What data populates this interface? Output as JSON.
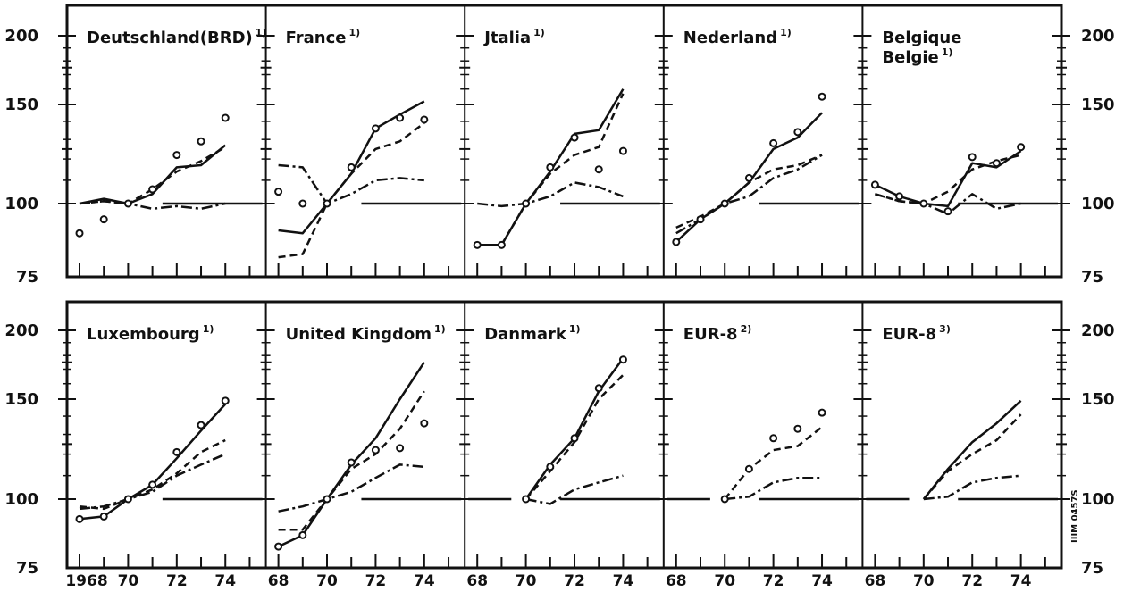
{
  "figure": {
    "code": "IIIM 0457S"
  },
  "chart_data": [
    {
      "type": "line",
      "title": "Deutschland(BRD)",
      "note": "1)",
      "xlim": [
        1968,
        1975
      ],
      "ylim": [
        75,
        200
      ],
      "x": [
        1968,
        1969,
        1970,
        1971,
        1972,
        1973,
        1974
      ],
      "series": [
        {
          "style": "solid",
          "values": [
            100,
            102,
            100,
            104,
            116,
            117,
            127
          ]
        },
        {
          "style": "dashed",
          "values": [
            100,
            101,
            100,
            106,
            114,
            119,
            126
          ]
        },
        {
          "style": "dashdot",
          "values": [
            100,
            101,
            100,
            98,
            99,
            98,
            100
          ]
        },
        {
          "style": "markers",
          "values": [
            89,
            94,
            100,
            106,
            122,
            129,
            142
          ]
        }
      ]
    },
    {
      "type": "line",
      "title": "France",
      "note": "1)",
      "xlim": [
        1968,
        1975
      ],
      "ylim": [
        75,
        200
      ],
      "x": [
        1968,
        1969,
        1970,
        1971,
        1972,
        1973,
        1974
      ],
      "series": [
        {
          "style": "solid",
          "values": [
            90,
            89,
            100,
            113,
            136,
            144,
            152
          ]
        },
        {
          "style": "dashed",
          "values": [
            81,
            82,
            100,
            113,
            125,
            129,
            139
          ]
        },
        {
          "style": "dashdot",
          "values": [
            117,
            116,
            100,
            104,
            110,
            111,
            110
          ]
        },
        {
          "style": "markers",
          "values": [
            105,
            100,
            100,
            116,
            136,
            142,
            141
          ]
        }
      ]
    },
    {
      "type": "line",
      "title": "Jtalia",
      "note": "1)",
      "xlim": [
        1968,
        1975
      ],
      "ylim": [
        75,
        200
      ],
      "x": [
        1968,
        1969,
        1970,
        1971,
        1972,
        1973,
        1974
      ],
      "series": [
        {
          "style": "solid",
          "values": [
            85,
            85,
            100,
            114,
            133,
            135,
            160
          ]
        },
        {
          "style": "dashed",
          "values": [
            85,
            85,
            100,
            113,
            122,
            126,
            157
          ]
        },
        {
          "style": "dashdot",
          "values": [
            100,
            99,
            100,
            103,
            109,
            107,
            103
          ]
        },
        {
          "style": "markers",
          "values": [
            85,
            85,
            100,
            116,
            131,
            115,
            124
          ]
        }
      ]
    },
    {
      "type": "line",
      "title": "Nederland",
      "note": "1)",
      "xlim": [
        1968,
        1975
      ],
      "ylim": [
        75,
        200
      ],
      "x": [
        1968,
        1969,
        1970,
        1971,
        1972,
        1973,
        1974
      ],
      "series": [
        {
          "style": "solid",
          "values": [
            86,
            94,
            100,
            109,
            125,
            131,
            145
          ]
        },
        {
          "style": "dashed",
          "values": [
            91,
            95,
            100,
            109,
            115,
            117,
            122
          ]
        },
        {
          "style": "dashdot",
          "values": [
            89,
            94,
            100,
            103,
            111,
            115,
            122
          ]
        },
        {
          "style": "markers",
          "values": [
            86,
            94,
            100,
            111,
            128,
            134,
            155
          ]
        }
      ]
    },
    {
      "type": "line",
      "title": "Belgique\nBelgie",
      "note": "1)",
      "xlim": [
        1968,
        1975
      ],
      "ylim": [
        75,
        200
      ],
      "x": [
        1968,
        1969,
        1970,
        1971,
        1972,
        1973,
        1974
      ],
      "series": [
        {
          "style": "solid",
          "values": [
            108,
            103,
            100,
            99,
            118,
            116,
            124
          ]
        },
        {
          "style": "dashed",
          "values": [
            104,
            101,
            100,
            105,
            115,
            119,
            122
          ]
        },
        {
          "style": "dashdot",
          "values": [
            104,
            101,
            100,
            96,
            104,
            98,
            100
          ]
        },
        {
          "style": "markers",
          "values": [
            108,
            103,
            100,
            97,
            121,
            118,
            126
          ]
        }
      ]
    },
    {
      "type": "line",
      "title": "Luxembourg",
      "note": "1)",
      "xlim": [
        1968,
        1975
      ],
      "ylim": [
        75,
        200
      ],
      "x": [
        1968,
        1969,
        1970,
        1971,
        1972,
        1973,
        1974
      ],
      "series": [
        {
          "style": "solid",
          "values": [
            92,
            93,
            100,
            106,
            118,
            132,
            147
          ]
        },
        {
          "style": "dashed",
          "values": [
            97,
            96,
            100,
            104,
            111,
            121,
            127
          ]
        },
        {
          "style": "dashdot",
          "values": [
            96,
            97,
            100,
            103,
            110,
            115,
            120
          ]
        },
        {
          "style": "markers",
          "values": [
            92,
            93,
            100,
            106,
            121,
            135,
            149
          ]
        }
      ]
    },
    {
      "type": "line",
      "title": "United Kingdom",
      "note": "1)",
      "xlim": [
        1968,
        1975
      ],
      "ylim": [
        75,
        200
      ],
      "x": [
        1968,
        1969,
        1970,
        1971,
        1972,
        1973,
        1974
      ],
      "series": [
        {
          "style": "solid",
          "values": [
            82,
            86,
            100,
            115,
            128,
            150,
            175
          ]
        },
        {
          "style": "dashed",
          "values": [
            88,
            88,
            100,
            113,
            120,
            133,
            155
          ]
        },
        {
          "style": "dashdot",
          "values": [
            95,
            97,
            100,
            103,
            109,
            115,
            114
          ]
        },
        {
          "style": "markers",
          "values": [
            82,
            86,
            100,
            116,
            122,
            123,
            136
          ]
        }
      ]
    },
    {
      "type": "line",
      "title": "Danmark",
      "note": "1)",
      "xlim": [
        1968,
        1975
      ],
      "ylim": [
        75,
        200
      ],
      "x": [
        1970,
        1971,
        1972,
        1973,
        1974
      ],
      "series": [
        {
          "style": "solid",
          "values": [
            100,
            115,
            128,
            155,
            178
          ]
        },
        {
          "style": "dashed",
          "values": [
            100,
            112,
            126,
            150,
            166
          ]
        },
        {
          "style": "dashdot",
          "values": [
            100,
            98,
            104,
            107,
            110
          ]
        },
        {
          "style": "markers",
          "values": [
            100,
            114,
            128,
            157,
            177
          ]
        }
      ]
    },
    {
      "type": "line",
      "title": "EUR-8",
      "note": "2)",
      "xlim": [
        1968,
        1975
      ],
      "ylim": [
        75,
        200
      ],
      "x": [
        1970,
        1971,
        1972,
        1973,
        1974
      ],
      "series": [
        {
          "style": "dashed",
          "values": [
            100,
            113,
            122,
            124,
            134
          ]
        },
        {
          "style": "dashdot",
          "values": [
            100,
            101,
            107,
            109,
            109
          ]
        },
        {
          "style": "markers",
          "values": [
            100,
            113,
            128,
            133,
            142
          ]
        }
      ]
    },
    {
      "type": "line",
      "title": "EUR-8",
      "note": "3)",
      "xlim": [
        1968,
        1975
      ],
      "ylim": [
        75,
        200
      ],
      "x": [
        1970,
        1971,
        1972,
        1973,
        1974
      ],
      "series": [
        {
          "style": "solid",
          "values": [
            100,
            113,
            126,
            136,
            149
          ]
        },
        {
          "style": "dashed",
          "values": [
            100,
            112,
            120,
            127,
            141
          ]
        },
        {
          "style": "dashdot",
          "values": [
            100,
            101,
            107,
            109,
            110
          ]
        }
      ]
    }
  ],
  "axes": {
    "y_ticks": [
      "200",
      "150",
      "100",
      "75"
    ],
    "x_ticks_first": [
      "1968",
      "70",
      "72",
      "74"
    ],
    "x_ticks": [
      "68",
      "70",
      "72",
      "74"
    ]
  }
}
